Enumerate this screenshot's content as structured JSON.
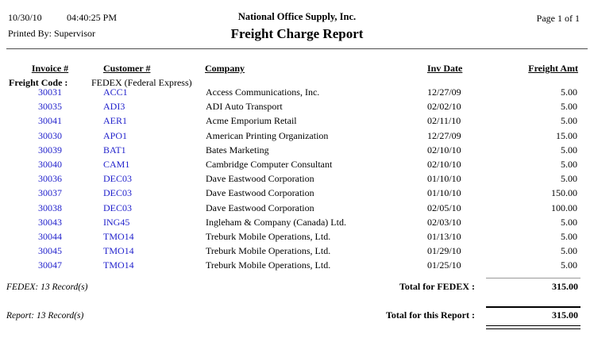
{
  "colors": {
    "link_blue": "#2222CC",
    "text_black": "#000000",
    "rule_dark": "#4d4d4d",
    "rule_gray": "#999999"
  },
  "header": {
    "date": "10/30/10",
    "time": "04:40:25 PM",
    "printed_by": "Printed By: Supervisor",
    "company_name": "National Office Supply, Inc.",
    "report_title": "Freight Charge Report",
    "page_info": "Page 1 of 1"
  },
  "columns": {
    "invoice": "Invoice #",
    "customer": "Customer #",
    "company": "Company",
    "inv_date": "Inv Date",
    "freight_amt": "Freight Amt"
  },
  "group": {
    "label": "Freight Code :",
    "value": "FEDEX (Federal Express)"
  },
  "rows": [
    {
      "invoice": "30031",
      "customer": "ACC1",
      "company": "Access Communications, Inc.",
      "inv_date": "12/27/09",
      "freight_amt": "5.00"
    },
    {
      "invoice": "30035",
      "customer": "ADI3",
      "company": "ADI Auto Transport",
      "inv_date": "02/02/10",
      "freight_amt": "5.00"
    },
    {
      "invoice": "30041",
      "customer": "AER1",
      "company": "Acme Emporium Retail",
      "inv_date": "02/11/10",
      "freight_amt": "5.00"
    },
    {
      "invoice": "30030",
      "customer": "APO1",
      "company": "American Printing Organization",
      "inv_date": "12/27/09",
      "freight_amt": "15.00"
    },
    {
      "invoice": "30039",
      "customer": "BAT1",
      "company": "Bates Marketing",
      "inv_date": "02/10/10",
      "freight_amt": "5.00"
    },
    {
      "invoice": "30040",
      "customer": "CAM1",
      "company": "Cambridge Computer Consultant",
      "inv_date": "02/10/10",
      "freight_amt": "5.00"
    },
    {
      "invoice": "30036",
      "customer": "DEC03",
      "company": "Dave Eastwood Corporation",
      "inv_date": "01/10/10",
      "freight_amt": "5.00"
    },
    {
      "invoice": "30037",
      "customer": "DEC03",
      "company": "Dave Eastwood Corporation",
      "inv_date": "01/10/10",
      "freight_amt": "150.00"
    },
    {
      "invoice": "30038",
      "customer": "DEC03",
      "company": "Dave Eastwood Corporation",
      "inv_date": "02/05/10",
      "freight_amt": "100.00"
    },
    {
      "invoice": "30043",
      "customer": "ING45",
      "company": "Ingleham & Company (Canada) Ltd.",
      "inv_date": "02/03/10",
      "freight_amt": "5.00"
    },
    {
      "invoice": "30044",
      "customer": "TMO14",
      "company": "Treburk Mobile Operations, Ltd.",
      "inv_date": "01/13/10",
      "freight_amt": "5.00"
    },
    {
      "invoice": "30045",
      "customer": "TMO14",
      "company": "Treburk Mobile Operations, Ltd.",
      "inv_date": "01/29/10",
      "freight_amt": "5.00"
    },
    {
      "invoice": "30047",
      "customer": "TMO14",
      "company": "Treburk Mobile Operations, Ltd.",
      "inv_date": "01/25/10",
      "freight_amt": "5.00"
    }
  ],
  "group_footer": {
    "record_count": "FEDEX: 13 Record(s)",
    "total_label": "Total for FEDEX :",
    "total_amount": "315.00"
  },
  "report_footer": {
    "record_count": "Report: 13 Record(s)",
    "total_label": "Total for this Report :",
    "total_amount": "315.00"
  }
}
